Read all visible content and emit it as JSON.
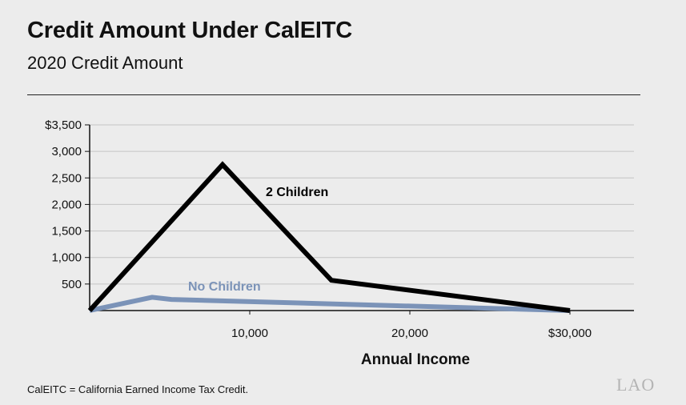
{
  "header": {
    "title": "Credit Amount Under CalEITC",
    "subtitle": "2020 Credit Amount"
  },
  "footnote": "CalEITC = California Earned Income Tax Credit.",
  "logo": "LAO",
  "chart_data": {
    "type": "line",
    "title": "",
    "xlabel": "Annual Income",
    "ylabel": "",
    "xlim": [
      0,
      34000
    ],
    "ylim": [
      0,
      3500
    ],
    "grid": true,
    "x_ticks": [
      {
        "value": 10000,
        "label": "10,000"
      },
      {
        "value": 20000,
        "label": "20,000"
      },
      {
        "value": 30000,
        "label": "$30,000"
      }
    ],
    "y_ticks": [
      {
        "value": 500,
        "label": "500"
      },
      {
        "value": 1000,
        "label": "1,000"
      },
      {
        "value": 1500,
        "label": "1,500"
      },
      {
        "value": 2000,
        "label": "2,000"
      },
      {
        "value": 2500,
        "label": "2,500"
      },
      {
        "value": 3000,
        "label": "3,000"
      },
      {
        "value": 3500,
        "label": "$3,500"
      }
    ],
    "series": [
      {
        "name": "2 Children",
        "color": "#000000",
        "x": [
          0,
          8300,
          15100,
          30000
        ],
        "y": [
          0,
          2750,
          570,
          0
        ]
      },
      {
        "name": "No Children",
        "color": "#7b93b8",
        "x": [
          0,
          3900,
          5100,
          30000
        ],
        "y": [
          0,
          250,
          210,
          0
        ]
      }
    ]
  }
}
